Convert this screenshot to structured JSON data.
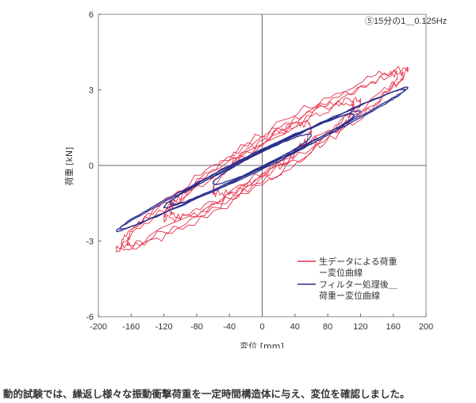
{
  "chart_data": {
    "type": "line",
    "title": "⑤15分の1＿0.125Hz",
    "xlabel": "変位 [mm]",
    "ylabel": "荷重 [kN]",
    "xlim": [
      -200,
      200
    ],
    "ylim": [
      -6,
      6
    ],
    "xticks": [
      -200,
      -160,
      -120,
      -80,
      -40,
      0,
      40,
      80,
      120,
      160,
      200
    ],
    "yticks": [
      -6,
      -3,
      0,
      3,
      6
    ],
    "grid": false,
    "zero_lines": true,
    "legend_position": "bottom-right",
    "series": [
      {
        "name": "生データによる荷重ー変位曲線",
        "color": "#e8304a",
        "loops": [
          {
            "xr": 178,
            "yr": 3.6,
            "w": 0.55
          },
          {
            "xr": 172,
            "yr": 3.4,
            "w": 0.75
          },
          {
            "xr": 120,
            "yr": 2.3,
            "w": 0.6
          },
          {
            "xr": 112,
            "yr": 2.1,
            "w": 0.9
          },
          {
            "xr": 60,
            "yr": 1.2,
            "w": 0.7
          },
          {
            "xr": 165,
            "yr": 3.3,
            "w": 1.0
          }
        ]
      },
      {
        "name": "フィルター処理後＿荷重ー変位曲線",
        "color": "#2b2f8c",
        "loops": [
          {
            "xr": 178,
            "yr": 2.85,
            "w": 0.28
          },
          {
            "xr": 174,
            "yr": 2.75,
            "w": 0.35
          },
          {
            "xr": 120,
            "yr": 1.9,
            "w": 0.32
          },
          {
            "xr": 112,
            "yr": 1.75,
            "w": 0.4
          },
          {
            "xr": 60,
            "yr": 0.95,
            "w": 0.3
          }
        ]
      }
    ]
  },
  "legend": {
    "raw_line1": "生データによる荷重",
    "raw_line2": "ー変位曲線",
    "filtered_line1": "フィルター処理後＿",
    "filtered_line2": "荷重ー変位曲線"
  },
  "caption": "動的試験では、繰返し様々な振動衝撃荷重を一定時間構造体に与え、変位を確認しました。"
}
